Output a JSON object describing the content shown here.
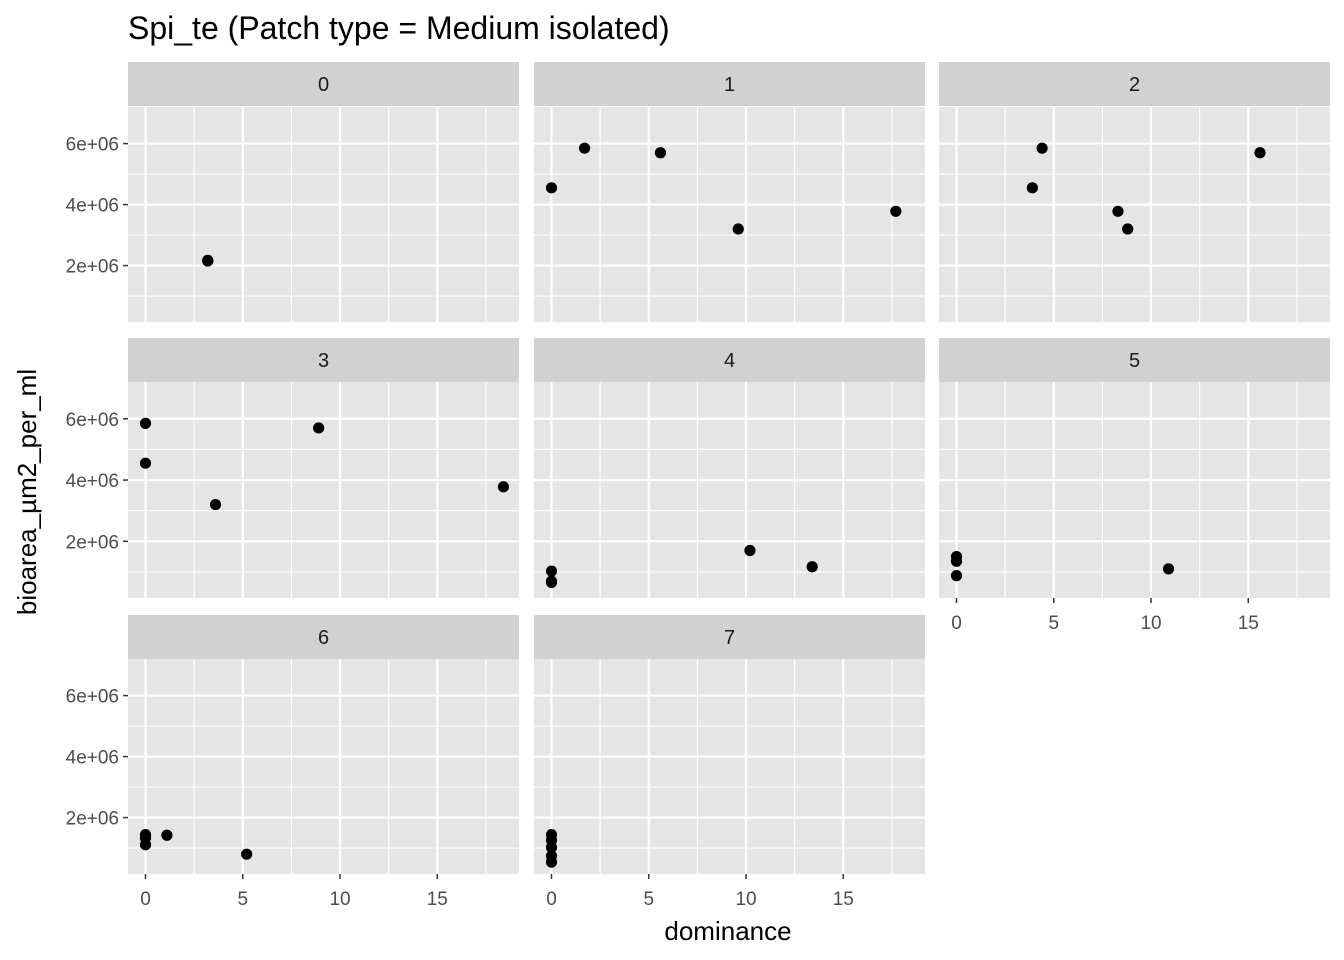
{
  "chart_data": {
    "type": "scatter",
    "title": "Spi_te (Patch type = Medium isolated)",
    "xlabel": "dominance",
    "ylabel": "bioarea_µm2_per_ml",
    "facet_layout": "3 columns, 3 rows",
    "xlim": [
      -0.9,
      19.2
    ],
    "ylim": [
      150000,
      7200000
    ],
    "x_ticks": [
      0,
      5,
      10,
      15
    ],
    "x_tick_labels": [
      "0",
      "5",
      "10",
      "15"
    ],
    "y_ticks": [
      2000000,
      4000000,
      6000000
    ],
    "y_tick_labels": [
      "2e+06",
      "4e+06",
      "6e+06"
    ],
    "grid": true,
    "colors": {
      "panel_background": "#e5e5e5",
      "strip_background": "#d1d1d1",
      "grid": "#ffffff",
      "point": "#000000"
    },
    "facets": [
      {
        "label": "0",
        "points": [
          [
            3.2,
            2170000
          ],
          [
            3.2,
            2150000
          ]
        ]
      },
      {
        "label": "1",
        "points": [
          [
            0,
            4550000
          ],
          [
            1.7,
            5850000
          ],
          [
            5.6,
            5700000
          ],
          [
            9.6,
            3200000
          ],
          [
            17.7,
            3780000
          ]
        ]
      },
      {
        "label": "2",
        "points": [
          [
            3.9,
            4550000
          ],
          [
            4.4,
            5850000
          ],
          [
            8.3,
            3780000
          ],
          [
            8.8,
            3200000
          ],
          [
            15.6,
            5700000
          ]
        ]
      },
      {
        "label": "3",
        "points": [
          [
            0,
            5850000
          ],
          [
            0,
            4550000
          ],
          [
            3.6,
            3200000
          ],
          [
            8.9,
            5700000
          ],
          [
            18.4,
            3780000
          ]
        ]
      },
      {
        "label": "4",
        "points": [
          [
            0,
            1030000
          ],
          [
            0,
            700000
          ],
          [
            0,
            660000
          ],
          [
            10.2,
            1700000
          ],
          [
            13.4,
            1170000
          ]
        ]
      },
      {
        "label": "5",
        "points": [
          [
            0,
            1500000
          ],
          [
            0,
            1350000
          ],
          [
            0,
            880000
          ],
          [
            10.9,
            1100000
          ]
        ]
      },
      {
        "label": "6",
        "points": [
          [
            0,
            1440000
          ],
          [
            0,
            1330000
          ],
          [
            0,
            1110000
          ],
          [
            1.1,
            1420000
          ],
          [
            5.2,
            800000
          ]
        ]
      },
      {
        "label": "7",
        "points": [
          [
            0,
            1440000
          ],
          [
            0,
            1260000
          ],
          [
            0,
            1020000
          ],
          [
            0,
            740000
          ],
          [
            0,
            540000
          ]
        ]
      }
    ]
  }
}
